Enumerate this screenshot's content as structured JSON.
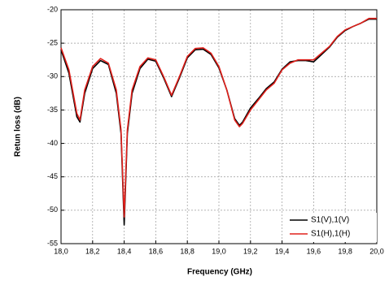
{
  "chart_data": {
    "type": "line",
    "x_label": "Frequency (GHz)",
    "y_label": "Retun loss (dB)",
    "x": [
      18.0,
      18.05,
      18.1,
      18.12,
      18.15,
      18.2,
      18.25,
      18.3,
      18.35,
      18.38,
      18.4,
      18.42,
      18.45,
      18.5,
      18.55,
      18.6,
      18.65,
      18.7,
      18.75,
      18.8,
      18.85,
      18.9,
      18.95,
      19.0,
      19.05,
      19.1,
      19.13,
      19.15,
      19.2,
      19.25,
      19.3,
      19.35,
      19.4,
      19.45,
      19.5,
      19.55,
      19.6,
      19.65,
      19.7,
      19.75,
      19.8,
      19.85,
      19.9,
      19.95,
      20.0
    ],
    "series": [
      {
        "name": "S1(V),1(V)",
        "color": "#000000",
        "values": [
          -26.0,
          -29.5,
          -36.0,
          -36.8,
          -32.5,
          -28.8,
          -27.6,
          -28.2,
          -32.5,
          -38.5,
          -52.2,
          -38.5,
          -32.5,
          -28.8,
          -27.4,
          -27.7,
          -30.2,
          -33.0,
          -30.2,
          -27.2,
          -26.0,
          -25.9,
          -26.7,
          -28.7,
          -32.0,
          -36.3,
          -37.3,
          -36.8,
          -34.7,
          -33.3,
          -31.8,
          -30.8,
          -28.9,
          -27.8,
          -27.6,
          -27.6,
          -27.8,
          -26.7,
          -25.6,
          -24.1,
          -23.1,
          -22.5,
          -22.0,
          -21.4,
          -21.4
        ]
      },
      {
        "name": "S1(H),1(H)",
        "color": "#e0201b",
        "values": [
          -25.7,
          -29.0,
          -35.5,
          -36.5,
          -32.0,
          -28.5,
          -27.3,
          -28.0,
          -32.0,
          -38.0,
          -51.0,
          -38.0,
          -32.0,
          -28.5,
          -27.2,
          -27.5,
          -30.0,
          -32.8,
          -30.0,
          -27.0,
          -25.8,
          -25.7,
          -26.5,
          -28.5,
          -32.0,
          -36.5,
          -37.5,
          -37.0,
          -35.0,
          -33.5,
          -32.0,
          -31.0,
          -29.0,
          -28.0,
          -27.5,
          -27.5,
          -27.5,
          -26.5,
          -25.5,
          -24.0,
          -23.0,
          -22.5,
          -22.0,
          -21.3,
          -21.3
        ]
      }
    ],
    "xlim": [
      18.0,
      20.0
    ],
    "xticks": [
      {
        "value": 18.0,
        "label": "18,0"
      },
      {
        "value": 18.2,
        "label": "18,2"
      },
      {
        "value": 18.4,
        "label": "18,4"
      },
      {
        "value": 18.6,
        "label": "18,6"
      },
      {
        "value": 18.8,
        "label": "18,8"
      },
      {
        "value": 19.0,
        "label": "19,0"
      },
      {
        "value": 19.2,
        "label": "19,2"
      },
      {
        "value": 19.4,
        "label": "19,4"
      },
      {
        "value": 19.6,
        "label": "19,6"
      },
      {
        "value": 19.8,
        "label": "19,8"
      },
      {
        "value": 20.0,
        "label": "20,0"
      }
    ],
    "ylim": [
      -55,
      -20
    ],
    "yticks": [
      -55,
      -50,
      -45,
      -40,
      -35,
      -30,
      -25,
      -20
    ],
    "grid": true,
    "legend": "lower right"
  }
}
